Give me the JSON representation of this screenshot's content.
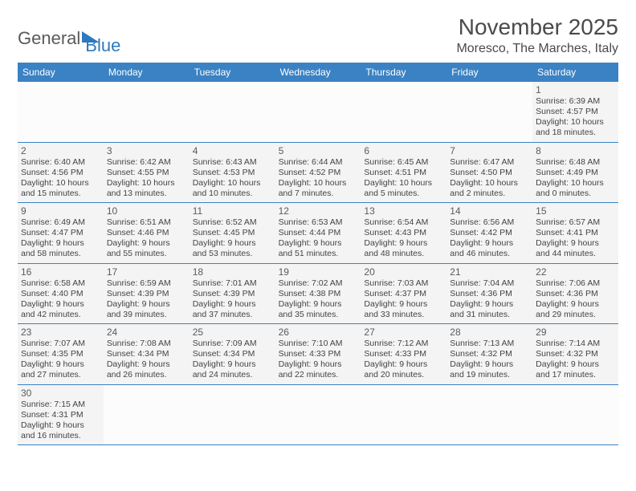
{
  "logo": {
    "part1": "General",
    "part2": "Blue"
  },
  "title": "November 2025",
  "location": "Moresco, The Marches, Italy",
  "colors": {
    "header_bg": "#3a82c4",
    "header_fg": "#ffffff",
    "cell_bg": "#f4f4f4",
    "blank_bg": "#fcfcfc",
    "border": "#3a82c4",
    "logo_gray": "#5a5a5a",
    "logo_blue": "#2f79bd",
    "text": "#444444"
  },
  "weekdays": [
    "Sunday",
    "Monday",
    "Tuesday",
    "Wednesday",
    "Thursday",
    "Friday",
    "Saturday"
  ],
  "leading_blanks": 6,
  "trailing_blanks": 6,
  "days": [
    {
      "n": 1,
      "sunrise": "6:39 AM",
      "sunset": "4:57 PM",
      "daylight": "10 hours and 18 minutes."
    },
    {
      "n": 2,
      "sunrise": "6:40 AM",
      "sunset": "4:56 PM",
      "daylight": "10 hours and 15 minutes."
    },
    {
      "n": 3,
      "sunrise": "6:42 AM",
      "sunset": "4:55 PM",
      "daylight": "10 hours and 13 minutes."
    },
    {
      "n": 4,
      "sunrise": "6:43 AM",
      "sunset": "4:53 PM",
      "daylight": "10 hours and 10 minutes."
    },
    {
      "n": 5,
      "sunrise": "6:44 AM",
      "sunset": "4:52 PM",
      "daylight": "10 hours and 7 minutes."
    },
    {
      "n": 6,
      "sunrise": "6:45 AM",
      "sunset": "4:51 PM",
      "daylight": "10 hours and 5 minutes."
    },
    {
      "n": 7,
      "sunrise": "6:47 AM",
      "sunset": "4:50 PM",
      "daylight": "10 hours and 2 minutes."
    },
    {
      "n": 8,
      "sunrise": "6:48 AM",
      "sunset": "4:49 PM",
      "daylight": "10 hours and 0 minutes."
    },
    {
      "n": 9,
      "sunrise": "6:49 AM",
      "sunset": "4:47 PM",
      "daylight": "9 hours and 58 minutes."
    },
    {
      "n": 10,
      "sunrise": "6:51 AM",
      "sunset": "4:46 PM",
      "daylight": "9 hours and 55 minutes."
    },
    {
      "n": 11,
      "sunrise": "6:52 AM",
      "sunset": "4:45 PM",
      "daylight": "9 hours and 53 minutes."
    },
    {
      "n": 12,
      "sunrise": "6:53 AM",
      "sunset": "4:44 PM",
      "daylight": "9 hours and 51 minutes."
    },
    {
      "n": 13,
      "sunrise": "6:54 AM",
      "sunset": "4:43 PM",
      "daylight": "9 hours and 48 minutes."
    },
    {
      "n": 14,
      "sunrise": "6:56 AM",
      "sunset": "4:42 PM",
      "daylight": "9 hours and 46 minutes."
    },
    {
      "n": 15,
      "sunrise": "6:57 AM",
      "sunset": "4:41 PM",
      "daylight": "9 hours and 44 minutes."
    },
    {
      "n": 16,
      "sunrise": "6:58 AM",
      "sunset": "4:40 PM",
      "daylight": "9 hours and 42 minutes."
    },
    {
      "n": 17,
      "sunrise": "6:59 AM",
      "sunset": "4:39 PM",
      "daylight": "9 hours and 39 minutes."
    },
    {
      "n": 18,
      "sunrise": "7:01 AM",
      "sunset": "4:39 PM",
      "daylight": "9 hours and 37 minutes."
    },
    {
      "n": 19,
      "sunrise": "7:02 AM",
      "sunset": "4:38 PM",
      "daylight": "9 hours and 35 minutes."
    },
    {
      "n": 20,
      "sunrise": "7:03 AM",
      "sunset": "4:37 PM",
      "daylight": "9 hours and 33 minutes."
    },
    {
      "n": 21,
      "sunrise": "7:04 AM",
      "sunset": "4:36 PM",
      "daylight": "9 hours and 31 minutes."
    },
    {
      "n": 22,
      "sunrise": "7:06 AM",
      "sunset": "4:36 PM",
      "daylight": "9 hours and 29 minutes."
    },
    {
      "n": 23,
      "sunrise": "7:07 AM",
      "sunset": "4:35 PM",
      "daylight": "9 hours and 27 minutes."
    },
    {
      "n": 24,
      "sunrise": "7:08 AM",
      "sunset": "4:34 PM",
      "daylight": "9 hours and 26 minutes."
    },
    {
      "n": 25,
      "sunrise": "7:09 AM",
      "sunset": "4:34 PM",
      "daylight": "9 hours and 24 minutes."
    },
    {
      "n": 26,
      "sunrise": "7:10 AM",
      "sunset": "4:33 PM",
      "daylight": "9 hours and 22 minutes."
    },
    {
      "n": 27,
      "sunrise": "7:12 AM",
      "sunset": "4:33 PM",
      "daylight": "9 hours and 20 minutes."
    },
    {
      "n": 28,
      "sunrise": "7:13 AM",
      "sunset": "4:32 PM",
      "daylight": "9 hours and 19 minutes."
    },
    {
      "n": 29,
      "sunrise": "7:14 AM",
      "sunset": "4:32 PM",
      "daylight": "9 hours and 17 minutes."
    },
    {
      "n": 30,
      "sunrise": "7:15 AM",
      "sunset": "4:31 PM",
      "daylight": "9 hours and 16 minutes."
    }
  ],
  "labels": {
    "sunrise": "Sunrise:",
    "sunset": "Sunset:",
    "daylight": "Daylight:"
  }
}
